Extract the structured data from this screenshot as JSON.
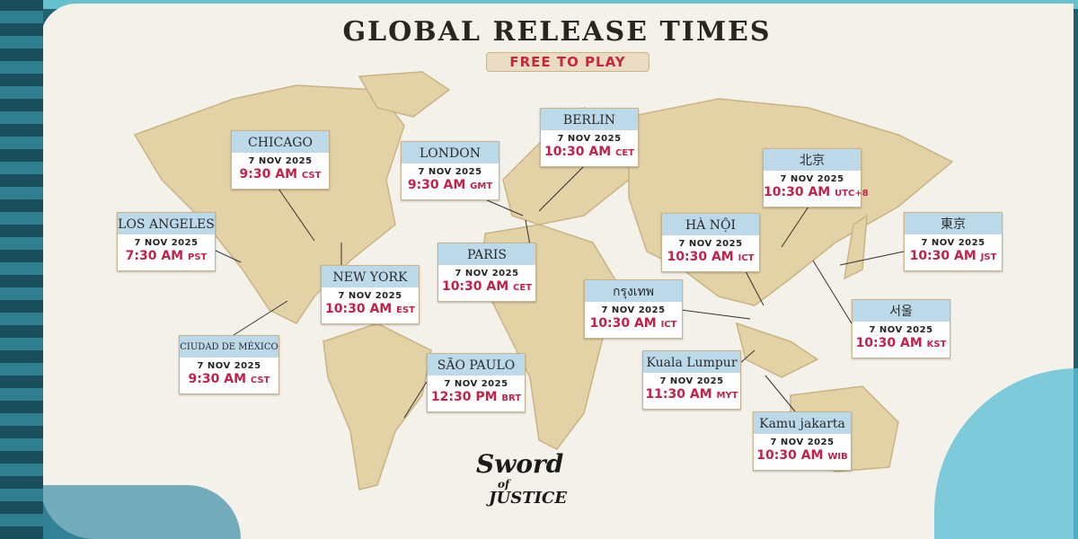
{
  "header": {
    "title": "GLOBAL RELEASE TIMES",
    "subtitle": "FREE TO PLAY"
  },
  "colors": {
    "time": "#c0224a",
    "card_header": "#bcd9ea",
    "paper": "#f4f1ea",
    "land": "#e3d2a6",
    "scroll": "#2f7f8f"
  },
  "cards": [
    {
      "city": "CHICAGO",
      "date": "7 NOV 2025",
      "time": "9:30 AM",
      "tz": "CST"
    },
    {
      "city": "LONDON",
      "date": "7 NOV 2025",
      "time": "9:30 AM",
      "tz": "GMT"
    },
    {
      "city": "BERLIN",
      "date": "7 NOV 2025",
      "time": "10:30 AM",
      "tz": "CET"
    },
    {
      "city": "北京",
      "date": "7 NOV 2025",
      "time": "10:30 AM",
      "tz": "UTC+8"
    },
    {
      "city": "東京",
      "date": "7 NOV 2025",
      "time": "10:30 AM",
      "tz": "JST"
    },
    {
      "city": "LOS ANGELES",
      "date": "7 NOV 2025",
      "time": "7:30 AM",
      "tz": "PST"
    },
    {
      "city": "NEW YORK",
      "date": "7 NOV 2025",
      "time": "10:30 AM",
      "tz": "EST"
    },
    {
      "city": "PARIS",
      "date": "7 NOV 2025",
      "time": "10:30 AM",
      "tz": "CET"
    },
    {
      "city": "HÀ NỘI",
      "date": "7 NOV 2025",
      "time": "10:30 AM",
      "tz": "ICT"
    },
    {
      "city": "กรุงเทพ",
      "date": "7 NOV 2025",
      "time": "10:30 AM",
      "tz": "ICT"
    },
    {
      "city": "서울",
      "date": "7 NOV 2025",
      "time": "10:30 AM",
      "tz": "KST"
    },
    {
      "city": "CIUDAD DE MÉXICO",
      "date": "7 NOV 2025",
      "time": "9:30 AM",
      "tz": "CST"
    },
    {
      "city": "SÃO PAULO",
      "date": "7 NOV 2025",
      "time": "12:30 PM",
      "tz": "BRT"
    },
    {
      "city": "Kuala Lumpur",
      "date": "7 NOV 2025",
      "time": "11:30 AM",
      "tz": "MYT"
    },
    {
      "city": "Kamu jakarta",
      "date": "7 NOV 2025",
      "time": "10:30 AM",
      "tz": "WIB"
    }
  ],
  "logo": {
    "text": "Sword of Justice"
  }
}
